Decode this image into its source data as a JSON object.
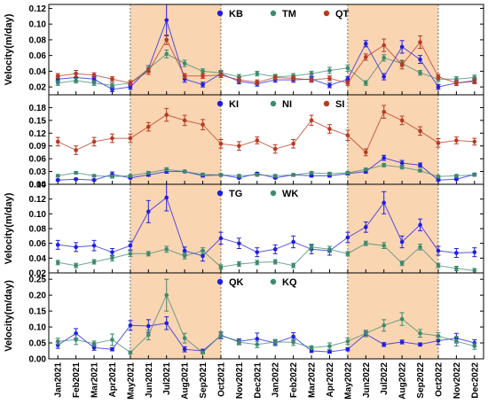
{
  "chart_data": {
    "type": "line",
    "x": [
      "Jan2021",
      "Feb2021",
      "Mar2021",
      "Apr2021",
      "May2021",
      "Jun2021",
      "Jul2021",
      "Aug2021",
      "Sep2021",
      "Oct2021",
      "Nov2021",
      "Dec2021",
      "Jan2022",
      "Feb2022",
      "Mar2022",
      "Apr2022",
      "May2022",
      "Jun2022",
      "Jul2022",
      "Aug2022",
      "Sep2022",
      "Oct2022",
      "Nov2022",
      "Dec2022"
    ],
    "shaded_periods": [
      [
        "May2021",
        "Oct2021"
      ],
      [
        "May2022",
        "Oct2022"
      ]
    ],
    "shade_color": "#fad5b2",
    "panels": [
      {
        "ylabel": "Velocity(m/day)",
        "ylim": [
          0.01,
          0.125
        ],
        "yticks": [
          "0.02",
          "0.04",
          "0.06",
          "0.08",
          "0.10",
          "0.12"
        ],
        "legend_position": "top-center",
        "series": [
          {
            "name": "KB",
            "color": "#1f1fe0",
            "values": [
              0.03,
              0.032,
              0.03,
              0.017,
              0.02,
              0.043,
              0.105,
              0.03,
              0.023,
              0.037,
              0.027,
              0.024,
              0.029,
              0.029,
              0.03,
              0.022,
              0.03,
              0.075,
              0.033,
              0.071,
              0.055,
              0.02,
              0.025,
              0.028
            ],
            "errors": [
              0.003,
              0.005,
              0.003,
              0.003,
              0.003,
              0.004,
              0.02,
              0.004,
              0.003,
              0.003,
              0.003,
              0.003,
              0.003,
              0.003,
              0.003,
              0.003,
              0.003,
              0.004,
              0.004,
              0.008,
              0.005,
              0.003,
              0.003,
              0.003
            ]
          },
          {
            "name": "TM",
            "color": "#3e8a6e",
            "values": [
              0.025,
              0.028,
              0.025,
              0.022,
              0.025,
              0.043,
              0.062,
              0.05,
              0.04,
              0.038,
              0.033,
              0.037,
              0.033,
              0.034,
              0.037,
              0.041,
              0.044,
              0.025,
              0.057,
              0.05,
              0.038,
              0.03,
              0.03,
              0.032
            ],
            "errors": [
              0.003,
              0.003,
              0.003,
              0.003,
              0.003,
              0.004,
              0.005,
              0.004,
              0.003,
              0.003,
              0.003,
              0.003,
              0.003,
              0.003,
              0.003,
              0.004,
              0.004,
              0.003,
              0.004,
              0.004,
              0.003,
              0.003,
              0.003,
              0.003
            ]
          },
          {
            "name": "QT",
            "color": "#b83a22",
            "values": [
              0.034,
              0.037,
              0.035,
              0.03,
              0.025,
              0.04,
              0.08,
              0.034,
              0.034,
              0.035,
              0.029,
              0.026,
              0.032,
              0.031,
              0.029,
              0.031,
              0.025,
              0.058,
              0.073,
              0.048,
              0.077,
              0.033,
              0.025,
              0.027
            ],
            "errors": [
              0.003,
              0.004,
              0.003,
              0.003,
              0.003,
              0.004,
              0.006,
              0.003,
              0.003,
              0.003,
              0.003,
              0.003,
              0.003,
              0.003,
              0.003,
              0.003,
              0.003,
              0.004,
              0.008,
              0.005,
              0.008,
              0.003,
              0.003,
              0.003
            ]
          }
        ]
      },
      {
        "ylabel": "",
        "ylim": [
          0,
          0.21
        ],
        "yticks": [
          "0.00",
          "0.03",
          "0.06",
          "0.09",
          "0.12",
          "0.15",
          "0.18"
        ],
        "legend_position": "top-center",
        "series": [
          {
            "name": "KI",
            "color": "#1f1fe0",
            "values": [
              0.01,
              0.012,
              0.01,
              0.023,
              0.015,
              0.022,
              0.03,
              0.03,
              0.02,
              0.022,
              0.015,
              0.025,
              0.015,
              0.022,
              0.02,
              0.02,
              0.025,
              0.03,
              0.062,
              0.05,
              0.045,
              0.01,
              0.012,
              0.023
            ],
            "errors": [
              0.002,
              0.002,
              0.002,
              0.006,
              0.002,
              0.003,
              0.004,
              0.003,
              0.003,
              0.003,
              0.002,
              0.003,
              0.002,
              0.003,
              0.003,
              0.003,
              0.003,
              0.004,
              0.006,
              0.006,
              0.005,
              0.002,
              0.002,
              0.003
            ]
          },
          {
            "name": "NI",
            "color": "#3e8a6e",
            "values": [
              0.02,
              0.027,
              0.02,
              0.018,
              0.02,
              0.027,
              0.035,
              0.03,
              0.023,
              0.022,
              0.02,
              0.022,
              0.02,
              0.022,
              0.027,
              0.025,
              0.027,
              0.035,
              0.045,
              0.04,
              0.032,
              0.018,
              0.02,
              0.022
            ],
            "errors": [
              0.003,
              0.003,
              0.003,
              0.003,
              0.003,
              0.003,
              0.004,
              0.003,
              0.003,
              0.003,
              0.003,
              0.003,
              0.003,
              0.003,
              0.003,
              0.003,
              0.003,
              0.003,
              0.004,
              0.004,
              0.003,
              0.003,
              0.003,
              0.003
            ]
          },
          {
            "name": "SI",
            "color": "#b83a22",
            "values": [
              0.1,
              0.08,
              0.1,
              0.108,
              0.108,
              0.135,
              0.163,
              0.15,
              0.14,
              0.095,
              0.09,
              0.103,
              0.083,
              0.095,
              0.15,
              0.13,
              0.115,
              0.075,
              0.17,
              0.15,
              0.125,
              0.097,
              0.103,
              0.1
            ],
            "errors": [
              0.01,
              0.01,
              0.01,
              0.01,
              0.01,
              0.01,
              0.015,
              0.012,
              0.012,
              0.01,
              0.01,
              0.008,
              0.01,
              0.01,
              0.012,
              0.01,
              0.012,
              0.008,
              0.015,
              0.01,
              0.01,
              0.01,
              0.008,
              0.008
            ]
          }
        ]
      },
      {
        "ylabel": "Velocity(m/day)",
        "ylim": [
          0.02,
          0.14
        ],
        "yticks": [
          "0.02",
          "0.04",
          "0.06",
          "0.08",
          "0.10",
          "0.12",
          "0.14"
        ],
        "legend_position": "top-center",
        "series": [
          {
            "name": "TG",
            "color": "#1f1fe0",
            "values": [
              0.058,
              0.055,
              0.057,
              0.048,
              0.057,
              0.103,
              0.122,
              0.05,
              0.043,
              0.067,
              0.06,
              0.048,
              0.052,
              0.062,
              0.052,
              0.05,
              0.068,
              0.082,
              0.115,
              0.062,
              0.085,
              0.05,
              0.047,
              0.048
            ],
            "errors": [
              0.006,
              0.006,
              0.007,
              0.005,
              0.006,
              0.015,
              0.018,
              0.005,
              0.007,
              0.008,
              0.007,
              0.006,
              0.006,
              0.008,
              0.006,
              0.006,
              0.007,
              0.007,
              0.015,
              0.008,
              0.008,
              0.006,
              0.006,
              0.006
            ]
          },
          {
            "name": "WK",
            "color": "#3e8a6e",
            "values": [
              0.034,
              0.03,
              0.035,
              0.04,
              0.046,
              0.046,
              0.052,
              0.043,
              0.05,
              0.028,
              0.032,
              0.034,
              0.035,
              0.03,
              0.055,
              0.052,
              0.046,
              0.06,
              0.057,
              0.033,
              0.055,
              0.03,
              0.026,
              0.023
            ],
            "errors": [
              0.003,
              0.003,
              0.003,
              0.004,
              0.004,
              0.003,
              0.004,
              0.004,
              0.004,
              0.003,
              0.003,
              0.003,
              0.003,
              0.003,
              0.004,
              0.004,
              0.003,
              0.003,
              0.004,
              0.003,
              0.004,
              0.003,
              0.003,
              0.003
            ]
          }
        ]
      },
      {
        "ylabel": "Velocity(m/day)",
        "ylim": [
          0,
          0.27
        ],
        "yticks": [
          "0.00",
          "0.05",
          "0.10",
          "0.15",
          "0.20",
          "0.25"
        ],
        "legend_position": "top-center",
        "series": [
          {
            "name": "QK",
            "color": "#1f1fe0",
            "values": [
              0.043,
              0.08,
              0.035,
              0.03,
              0.105,
              0.103,
              0.112,
              0.03,
              0.025,
              0.073,
              0.055,
              0.063,
              0.05,
              0.07,
              0.025,
              0.022,
              0.03,
              0.078,
              0.045,
              0.053,
              0.045,
              0.057,
              0.065,
              0.05
            ],
            "errors": [
              0.01,
              0.015,
              0.008,
              0.005,
              0.015,
              0.02,
              0.02,
              0.008,
              0.005,
              0.01,
              0.008,
              0.018,
              0.008,
              0.012,
              0.005,
              0.004,
              0.005,
              0.008,
              0.006,
              0.006,
              0.005,
              0.012,
              0.015,
              0.01
            ]
          },
          {
            "name": "KQ",
            "color": "#3e8a6e",
            "values": [
              0.055,
              0.06,
              0.048,
              0.06,
              0.02,
              0.075,
              0.2,
              0.065,
              0.02,
              0.075,
              0.052,
              0.045,
              0.053,
              0.052,
              0.035,
              0.04,
              0.055,
              0.08,
              0.105,
              0.125,
              0.08,
              0.072,
              0.055,
              0.04
            ],
            "errors": [
              0.01,
              0.015,
              0.008,
              0.018,
              0.005,
              0.015,
              0.05,
              0.015,
              0.005,
              0.01,
              0.008,
              0.01,
              0.008,
              0.01,
              0.006,
              0.01,
              0.01,
              0.01,
              0.018,
              0.02,
              0.012,
              0.01,
              0.015,
              0.01
            ]
          }
        ]
      }
    ]
  }
}
